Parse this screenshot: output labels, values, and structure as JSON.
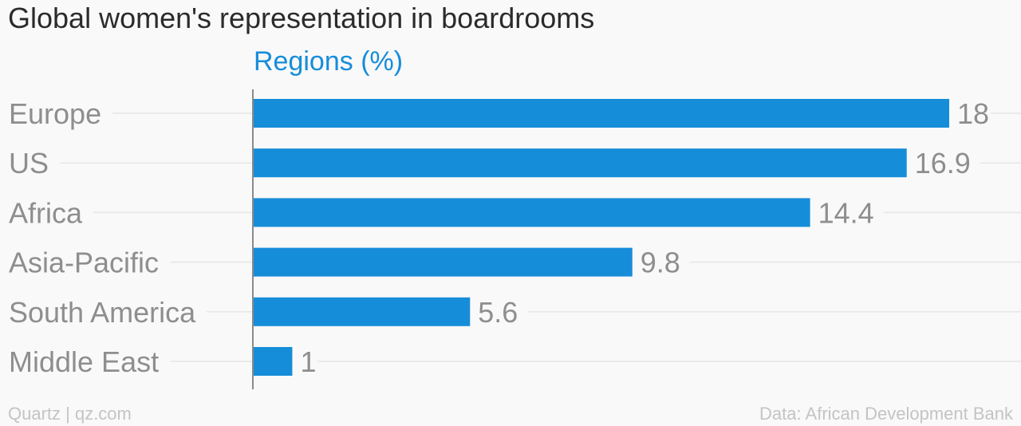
{
  "colors": {
    "bar": "#168dd9",
    "label": "#8e8e8e",
    "grid": "#e6e6e6",
    "axis": "#8a8a8a"
  },
  "footer": {
    "source_left": "Quartz | qz.com",
    "source_right": "Data: African Development Bank"
  },
  "chart_data": {
    "type": "bar",
    "orientation": "horizontal",
    "title": "Global women's representation in boardrooms",
    "categories": [
      "Europe",
      "US",
      "Africa",
      "Asia-Pacific",
      "South America",
      "Middle East"
    ],
    "series": [
      {
        "name": "Regions (%)",
        "values": [
          18,
          16.9,
          14.4,
          9.8,
          5.6,
          1
        ]
      }
    ],
    "data_labels": [
      "18",
      "16.9",
      "14.4",
      "9.8",
      "5.6",
      "1"
    ],
    "xlim": [
      0,
      18
    ],
    "grid": true,
    "legend_position": "top"
  }
}
